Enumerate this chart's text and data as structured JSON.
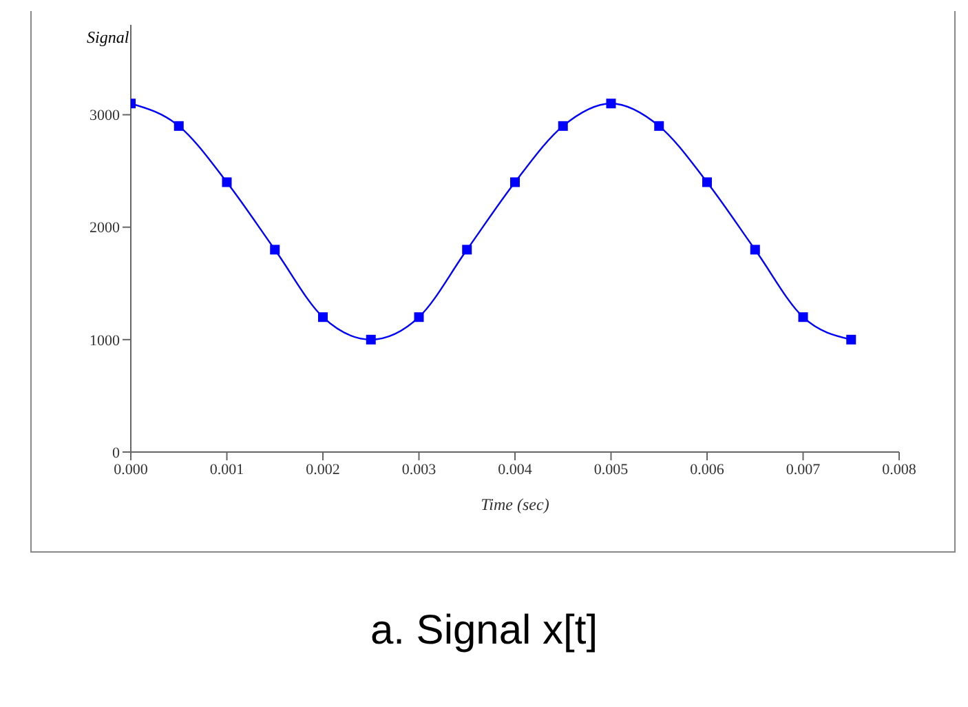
{
  "chart_data": {
    "type": "line",
    "xlabel": "Time (sec)",
    "ylabel": "Signal",
    "annotations": [
      "a. Signal x[t]"
    ],
    "x": [
      0,
      0.0005,
      0.001,
      0.0015,
      0.002,
      0.0025,
      0.003,
      0.0035,
      0.004,
      0.0045,
      0.005,
      0.0055,
      0.006,
      0.0065,
      0.007,
      0.0075
    ],
    "series": [
      {
        "color": "#0000ff",
        "values": [
          3100,
          2900,
          2400,
          1800,
          1200,
          1000,
          1200,
          1800,
          2400,
          2900,
          3100,
          2900,
          2400,
          1800,
          1200,
          1000
        ]
      }
    ],
    "xlim": [
      0,
      0.008
    ],
    "xticks": [
      {
        "value": 0,
        "label": "0.000"
      },
      {
        "value": 0.001,
        "label": "0.001"
      },
      {
        "value": 0.002,
        "label": "0.002"
      },
      {
        "value": 0.003,
        "label": "0.003"
      },
      {
        "value": 0.004,
        "label": "0.004"
      },
      {
        "value": 0.005,
        "label": "0.005"
      },
      {
        "value": 0.006,
        "label": "0.006"
      },
      {
        "value": 0.007,
        "label": "0.007"
      },
      {
        "value": 0.008,
        "label": "0.008"
      }
    ],
    "ylim": [
      0,
      3800
    ],
    "yticks": [
      0,
      1000,
      2000,
      3000
    ],
    "grid": false,
    "legend": false,
    "marker": "square",
    "line_style": "solid"
  }
}
